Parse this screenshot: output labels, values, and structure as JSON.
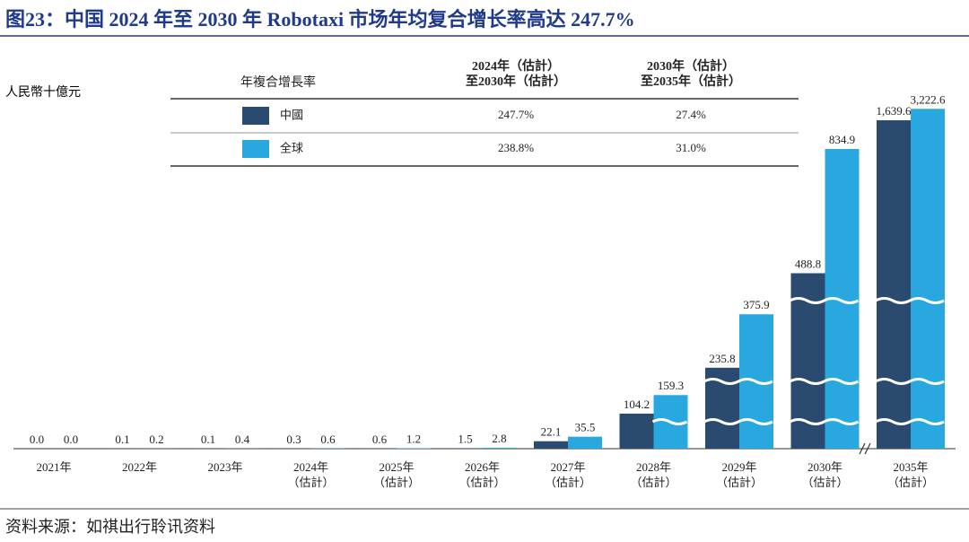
{
  "chart_data": {
    "type": "bar",
    "title": "图23：中国 2024 年至 2030 年 Robotaxi 市场年均复合增长率高达 247.7%",
    "unit_label": "人民幣十億元",
    "categories": [
      "2021年",
      "2022年",
      "2023年",
      "2024年\n（估計）",
      "2025年\n（估計）",
      "2026年\n（估計）",
      "2027年\n（估計）",
      "2028年\n（估計）",
      "2029年\n（估計）",
      "2030年\n（估計）",
      "2035年\n（估計）"
    ],
    "series": [
      {
        "name": "中國",
        "color": "#2b4a6f",
        "values": [
          0.0,
          0.1,
          0.1,
          0.3,
          0.6,
          1.5,
          22.1,
          104.2,
          235.8,
          488.8,
          1639.6
        ],
        "value_labels": [
          "0.0",
          "0.1",
          "0.1",
          "0.3",
          "0.6",
          "1.5",
          "22.1",
          "104.2",
          "235.8",
          "488.8",
          "1,639.6"
        ]
      },
      {
        "name": "全球",
        "color": "#29a8e0",
        "values": [
          0.0,
          0.2,
          0.4,
          0.6,
          1.2,
          2.8,
          35.5,
          159.3,
          375.9,
          834.9,
          3222.6
        ],
        "value_labels": [
          "0.0",
          "0.2",
          "0.4",
          "0.6",
          "1.2",
          "2.8",
          "35.5",
          "159.3",
          "375.9",
          "834.9",
          "3,222.6"
        ]
      }
    ],
    "legend_table": {
      "header": "年複合增長率",
      "columns": [
        "2024年（估計）\n至2030年（估計）",
        "2030年（估計）\n至2035年（估計）"
      ],
      "rows": [
        [
          "247.7%",
          "27.4%"
        ],
        [
          "238.8%",
          "31.0%"
        ]
      ]
    }
  },
  "source": "资料来源：如祺出行聆讯资料"
}
